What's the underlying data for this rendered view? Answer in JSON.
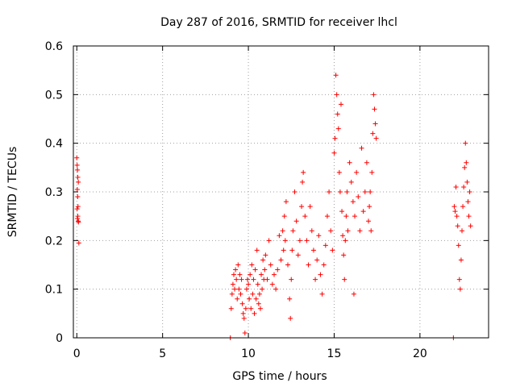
{
  "chart_data": {
    "type": "scatter",
    "title": "Day 287 of 2016, SRMTID for receiver lhcl",
    "xlabel": "GPS time / hours",
    "ylabel": "SRMTID / TECUs",
    "xlim": [
      -0.2,
      24
    ],
    "ylim": [
      0,
      0.6
    ],
    "xticks": [
      0,
      5,
      10,
      15,
      20
    ],
    "xtick_labels": [
      "0",
      "5",
      "10",
      "15",
      "20"
    ],
    "yticks": [
      0,
      0.1,
      0.2,
      0.3,
      0.4,
      0.5,
      0.6
    ],
    "ytick_labels": [
      "0",
      "0.1",
      "0.2",
      "0.3",
      "0.4",
      "0.5",
      "0.6"
    ],
    "grid": true,
    "legend": "none",
    "marker": "+",
    "color": "#ff0000",
    "series": [
      {
        "name": "SRMTID",
        "points": [
          [
            0.0,
            0.37
          ],
          [
            0.02,
            0.355
          ],
          [
            0.04,
            0.345
          ],
          [
            0.06,
            0.33
          ],
          [
            0.03,
            0.305
          ],
          [
            0.05,
            0.29
          ],
          [
            0.07,
            0.27
          ],
          [
            0.02,
            0.265
          ],
          [
            0.04,
            0.245
          ],
          [
            0.08,
            0.24
          ],
          [
            0.1,
            0.238
          ],
          [
            0.12,
            0.195
          ],
          [
            0.06,
            0.25
          ],
          [
            0.09,
            0.32
          ],
          [
            8.95,
            0.0
          ],
          [
            21.95,
            0.0
          ],
          [
            9.0,
            0.06
          ],
          [
            9.05,
            0.09
          ],
          [
            9.1,
            0.11
          ],
          [
            9.15,
            0.13
          ],
          [
            9.2,
            0.1
          ],
          [
            9.25,
            0.14
          ],
          [
            9.3,
            0.12
          ],
          [
            9.35,
            0.08
          ],
          [
            9.4,
            0.15
          ],
          [
            9.45,
            0.1
          ],
          [
            9.5,
            0.13
          ],
          [
            9.55,
            0.09
          ],
          [
            9.6,
            0.12
          ],
          [
            9.65,
            0.07
          ],
          [
            9.7,
            0.05
          ],
          [
            9.75,
            0.04
          ],
          [
            9.8,
            0.01
          ],
          [
            9.85,
            0.06
          ],
          [
            9.9,
            0.1
          ],
          [
            9.95,
            0.12
          ],
          [
            10.0,
            0.11
          ],
          [
            10.05,
            0.08
          ],
          [
            10.1,
            0.13
          ],
          [
            10.15,
            0.06
          ],
          [
            10.2,
            0.15
          ],
          [
            10.25,
            0.09
          ],
          [
            10.3,
            0.12
          ],
          [
            10.35,
            0.05
          ],
          [
            10.4,
            0.14
          ],
          [
            10.45,
            0.08
          ],
          [
            10.5,
            0.18
          ],
          [
            10.55,
            0.11
          ],
          [
            10.6,
            0.07
          ],
          [
            10.65,
            0.09
          ],
          [
            10.7,
            0.06
          ],
          [
            10.75,
            0.13
          ],
          [
            10.8,
            0.1
          ],
          [
            10.85,
            0.16
          ],
          [
            10.9,
            0.12
          ],
          [
            10.95,
            0.14
          ],
          [
            11.0,
            0.17
          ],
          [
            11.1,
            0.12
          ],
          [
            11.2,
            0.2
          ],
          [
            11.3,
            0.15
          ],
          [
            11.4,
            0.11
          ],
          [
            11.5,
            0.13
          ],
          [
            11.6,
            0.1
          ],
          [
            11.7,
            0.14
          ],
          [
            11.8,
            0.21
          ],
          [
            11.9,
            0.16
          ],
          [
            12.0,
            0.22
          ],
          [
            12.05,
            0.18
          ],
          [
            12.1,
            0.25
          ],
          [
            12.15,
            0.2
          ],
          [
            12.2,
            0.28
          ],
          [
            12.3,
            0.15
          ],
          [
            12.4,
            0.08
          ],
          [
            12.45,
            0.04
          ],
          [
            12.5,
            0.12
          ],
          [
            12.55,
            0.18
          ],
          [
            12.6,
            0.22
          ],
          [
            12.7,
            0.3
          ],
          [
            12.8,
            0.24
          ],
          [
            12.9,
            0.17
          ],
          [
            13.0,
            0.2
          ],
          [
            13.1,
            0.27
          ],
          [
            13.15,
            0.32
          ],
          [
            13.2,
            0.34
          ],
          [
            13.3,
            0.25
          ],
          [
            13.4,
            0.2
          ],
          [
            13.5,
            0.15
          ],
          [
            13.6,
            0.27
          ],
          [
            13.7,
            0.22
          ],
          [
            13.8,
            0.18
          ],
          [
            13.9,
            0.12
          ],
          [
            14.0,
            0.16
          ],
          [
            14.1,
            0.21
          ],
          [
            14.2,
            0.13
          ],
          [
            14.3,
            0.09
          ],
          [
            14.4,
            0.15
          ],
          [
            14.5,
            0.19
          ],
          [
            14.6,
            0.25
          ],
          [
            14.7,
            0.3
          ],
          [
            14.8,
            0.22
          ],
          [
            14.9,
            0.18
          ],
          [
            15.0,
            0.38
          ],
          [
            15.05,
            0.41
          ],
          [
            15.1,
            0.54
          ],
          [
            15.15,
            0.5
          ],
          [
            15.2,
            0.46
          ],
          [
            15.25,
            0.43
          ],
          [
            15.3,
            0.34
          ],
          [
            15.35,
            0.3
          ],
          [
            15.4,
            0.48
          ],
          [
            15.45,
            0.26
          ],
          [
            15.5,
            0.21
          ],
          [
            15.55,
            0.17
          ],
          [
            15.6,
            0.12
          ],
          [
            15.65,
            0.2
          ],
          [
            15.7,
            0.25
          ],
          [
            15.75,
            0.3
          ],
          [
            15.8,
            0.22
          ],
          [
            15.9,
            0.36
          ],
          [
            16.0,
            0.32
          ],
          [
            16.1,
            0.28
          ],
          [
            16.15,
            0.09
          ],
          [
            16.2,
            0.25
          ],
          [
            16.3,
            0.34
          ],
          [
            16.4,
            0.29
          ],
          [
            16.5,
            0.22
          ],
          [
            16.6,
            0.39
          ],
          [
            16.7,
            0.26
          ],
          [
            16.8,
            0.3
          ],
          [
            16.9,
            0.36
          ],
          [
            17.0,
            0.24
          ],
          [
            17.05,
            0.27
          ],
          [
            17.1,
            0.3
          ],
          [
            17.15,
            0.22
          ],
          [
            17.2,
            0.34
          ],
          [
            17.25,
            0.42
          ],
          [
            17.3,
            0.5
          ],
          [
            17.35,
            0.47
          ],
          [
            17.4,
            0.44
          ],
          [
            17.45,
            0.41
          ],
          [
            22.0,
            0.27
          ],
          [
            22.05,
            0.26
          ],
          [
            22.1,
            0.31
          ],
          [
            22.15,
            0.25
          ],
          [
            22.2,
            0.23
          ],
          [
            22.25,
            0.19
          ],
          [
            22.3,
            0.12
          ],
          [
            22.35,
            0.1
          ],
          [
            22.4,
            0.16
          ],
          [
            22.45,
            0.22
          ],
          [
            22.5,
            0.27
          ],
          [
            22.55,
            0.31
          ],
          [
            22.6,
            0.35
          ],
          [
            22.65,
            0.4
          ],
          [
            22.7,
            0.36
          ],
          [
            22.75,
            0.32
          ],
          [
            22.8,
            0.28
          ],
          [
            22.85,
            0.25
          ],
          [
            22.9,
            0.3
          ],
          [
            22.95,
            0.23
          ]
        ]
      }
    ]
  }
}
